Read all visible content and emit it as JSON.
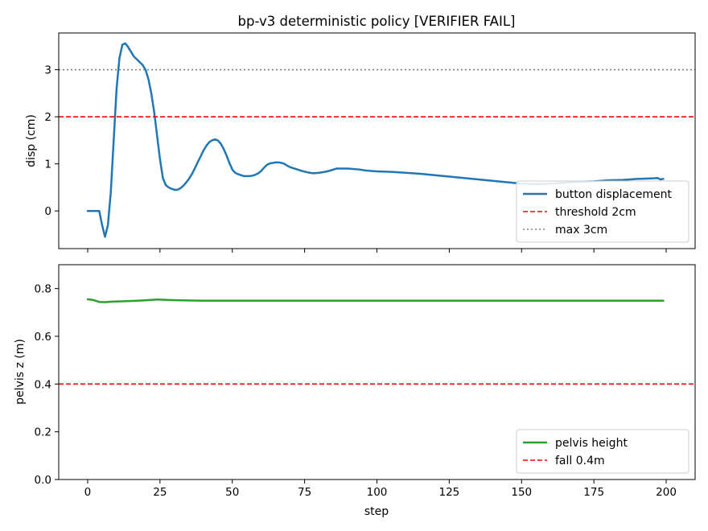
{
  "chart_data": [
    {
      "type": "line",
      "title": "bp-v3 deterministic policy  [VERIFIER FAIL]",
      "xlabel": "",
      "ylabel": "disp (cm)",
      "xlim": [
        -10,
        210
      ],
      "ylim": [
        -0.8,
        3.78
      ],
      "xticks": [
        0,
        25,
        50,
        75,
        100,
        125,
        150,
        175,
        200
      ],
      "yticks": [
        0,
        1,
        2,
        3
      ],
      "show_xtick_labels": false,
      "legend_position": "lower-right",
      "series": [
        {
          "name": "button displacement",
          "color": "#1f77b4",
          "style": "solid",
          "x": [
            0,
            2,
            4,
            5,
            6,
            7,
            8,
            9,
            10,
            11,
            12,
            13,
            14,
            15,
            16,
            17,
            18,
            19,
            20,
            21,
            22,
            23,
            24,
            25,
            26,
            27,
            28,
            29,
            30,
            31,
            32,
            33,
            34,
            35,
            36,
            37,
            38,
            39,
            40,
            41,
            42,
            43,
            44,
            45,
            46,
            47,
            48,
            49,
            50,
            51,
            52,
            53,
            54,
            55,
            56,
            57,
            58,
            59,
            60,
            61,
            62,
            63,
            64,
            65,
            66,
            67,
            68,
            69,
            70,
            72,
            74,
            76,
            78,
            80,
            82,
            84,
            86,
            88,
            90,
            92,
            94,
            96,
            98,
            100,
            105,
            110,
            115,
            120,
            125,
            130,
            135,
            140,
            145,
            150,
            155,
            160,
            165,
            170,
            175,
            180,
            185,
            190,
            195,
            197,
            198,
            199
          ],
          "y": [
            0,
            0,
            0,
            -0.3,
            -0.55,
            -0.3,
            0.4,
            1.5,
            2.6,
            3.25,
            3.53,
            3.56,
            3.48,
            3.38,
            3.28,
            3.22,
            3.16,
            3.1,
            3.0,
            2.8,
            2.5,
            2.1,
            1.6,
            1.1,
            0.7,
            0.55,
            0.5,
            0.47,
            0.45,
            0.45,
            0.48,
            0.53,
            0.6,
            0.68,
            0.78,
            0.9,
            1.03,
            1.15,
            1.28,
            1.38,
            1.46,
            1.5,
            1.52,
            1.5,
            1.43,
            1.32,
            1.18,
            1.02,
            0.88,
            0.81,
            0.78,
            0.76,
            0.74,
            0.74,
            0.74,
            0.75,
            0.77,
            0.8,
            0.85,
            0.92,
            0.98,
            1.01,
            1.02,
            1.03,
            1.03,
            1.02,
            1.0,
            0.96,
            0.93,
            0.89,
            0.85,
            0.82,
            0.8,
            0.81,
            0.83,
            0.86,
            0.9,
            0.9,
            0.9,
            0.89,
            0.88,
            0.86,
            0.85,
            0.84,
            0.83,
            0.81,
            0.79,
            0.76,
            0.73,
            0.7,
            0.67,
            0.64,
            0.61,
            0.58,
            0.57,
            0.58,
            0.6,
            0.62,
            0.63,
            0.65,
            0.66,
            0.68,
            0.69,
            0.7,
            0.67,
            0.68
          ]
        },
        {
          "name": "threshold 2cm",
          "color": "#ff0000",
          "style": "dashed",
          "hline": 2
        },
        {
          "name": "max 3cm",
          "color": "#808080",
          "style": "dotted",
          "hline": 3
        }
      ]
    },
    {
      "type": "line",
      "title": "",
      "xlabel": "step",
      "ylabel": "pelvis z (m)",
      "xlim": [
        -10,
        210
      ],
      "ylim": [
        0.0,
        0.9
      ],
      "xticks": [
        0,
        25,
        50,
        75,
        100,
        125,
        150,
        175,
        200
      ],
      "yticks": [
        0.0,
        0.2,
        0.4,
        0.6,
        0.8
      ],
      "ytick_labels": [
        "0.0",
        "0.2",
        "0.4",
        "0.6",
        "0.8"
      ],
      "show_xtick_labels": true,
      "legend_position": "lower-right",
      "series": [
        {
          "name": "pelvis height",
          "color": "#2ca02c",
          "style": "solid",
          "x": [
            0,
            2,
            4,
            6,
            8,
            10,
            15,
            20,
            24,
            28,
            32,
            36,
            40,
            50,
            60,
            80,
            100,
            120,
            150,
            175,
            199
          ],
          "y": [
            0.755,
            0.752,
            0.744,
            0.743,
            0.745,
            0.746,
            0.748,
            0.751,
            0.754,
            0.752,
            0.751,
            0.75,
            0.749,
            0.749,
            0.749,
            0.749,
            0.749,
            0.749,
            0.749,
            0.749,
            0.749
          ]
        },
        {
          "name": "fall 0.4m",
          "color": "#ff0000",
          "style": "dashed",
          "hline": 0.4
        }
      ]
    }
  ]
}
